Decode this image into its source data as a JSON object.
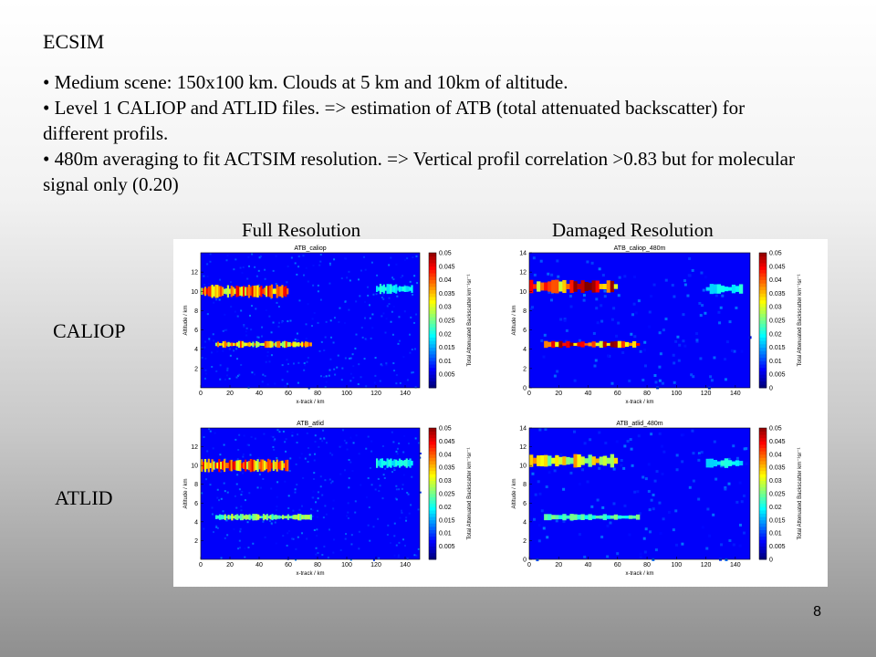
{
  "slide": {
    "title": "ECSIM",
    "bullets": [
      "• Medium scene: 150x100 km. Clouds at 5 km and 10km of altitude.",
      "• Level 1 CALIOP and ATLID files. => estimation of ATB (total attenuated backscatter) for different profils.",
      "• 480m averaging to fit ACTSIM resolution. => Vertical profil correlation >0.83 but for molecular signal only (0.20)"
    ],
    "column_headers": [
      "Full Resolution",
      "Damaged Resolution"
    ],
    "row_headers": [
      "CALIOP",
      "ATLID"
    ],
    "page_number": "8"
  },
  "chart_data": [
    {
      "type": "heatmap",
      "title": "ATB_caliop",
      "xlabel": "x-track / km",
      "ylabel": "Altitude / km",
      "colorbar_label": "Total Attenuated Backscatter km⁻¹sr⁻¹",
      "xlim": [
        0,
        150
      ],
      "ylim": [
        0,
        14
      ],
      "clim": [
        0,
        0.05
      ],
      "xticks": [
        0,
        20,
        40,
        60,
        80,
        100,
        120,
        140
      ],
      "yticks": [
        2,
        4,
        6,
        8,
        10,
        12
      ],
      "cticks": [
        0.005,
        0.01,
        0.015,
        0.02,
        0.025,
        0.03,
        0.035,
        0.04,
        0.045,
        0.05
      ],
      "features": [
        {
          "x": [
            0,
            60
          ],
          "y": [
            9,
            11
          ],
          "value": 0.04
        },
        {
          "x": [
            10,
            75
          ],
          "y": [
            4,
            5
          ],
          "value": 0.035
        },
        {
          "x": [
            120,
            145
          ],
          "y": [
            9.5,
            11
          ],
          "value": 0.01
        }
      ]
    },
    {
      "type": "heatmap",
      "title": "ATB_caliop_480m",
      "xlabel": "x-track / km",
      "ylabel": "Altitude / km",
      "colorbar_label": "Total Attenuated Backscatter km⁻¹sr⁻¹",
      "xlim": [
        0,
        150
      ],
      "ylim": [
        0,
        14
      ],
      "clim": [
        0,
        0.05
      ],
      "xticks": [
        0,
        20,
        40,
        60,
        80,
        100,
        120,
        140
      ],
      "yticks": [
        0,
        2,
        4,
        6,
        8,
        10,
        12,
        14
      ],
      "cticks": [
        0,
        0.005,
        0.01,
        0.015,
        0.02,
        0.025,
        0.03,
        0.035,
        0.04,
        0.045,
        0.05
      ],
      "features": [
        {
          "x": [
            0,
            60
          ],
          "y": [
            9.5,
            11.5
          ],
          "value": 0.045
        },
        {
          "x": [
            10,
            75
          ],
          "y": [
            4,
            5
          ],
          "value": 0.045
        },
        {
          "x": [
            120,
            145
          ],
          "y": [
            9.5,
            11
          ],
          "value": 0.01
        }
      ]
    },
    {
      "type": "heatmap",
      "title": "ATB_atlid",
      "xlabel": "x-track / km",
      "ylabel": "Altitude / km",
      "colorbar_label": "Total Attenuated Backscatter km⁻¹sr⁻¹",
      "xlim": [
        0,
        150
      ],
      "ylim": [
        0,
        14
      ],
      "clim": [
        0,
        0.05
      ],
      "xticks": [
        0,
        20,
        40,
        60,
        80,
        100,
        120,
        140
      ],
      "yticks": [
        2,
        4,
        6,
        8,
        10,
        12
      ],
      "cticks": [
        0.005,
        0.01,
        0.015,
        0.02,
        0.025,
        0.03,
        0.035,
        0.04,
        0.045,
        0.05
      ],
      "features": [
        {
          "x": [
            0,
            60
          ],
          "y": [
            9,
            11
          ],
          "value": 0.04
        },
        {
          "x": [
            10,
            75
          ],
          "y": [
            4,
            5
          ],
          "value": 0.02
        },
        {
          "x": [
            120,
            145
          ],
          "y": [
            9.5,
            11
          ],
          "value": 0.01
        }
      ]
    },
    {
      "type": "heatmap",
      "title": "ATB_atlid_480m",
      "xlabel": "x-track / km",
      "ylabel": "Altitude / km",
      "colorbar_label": "Total Attenuated Backscatter km⁻¹sr⁻¹",
      "xlim": [
        0,
        150
      ],
      "ylim": [
        0,
        14
      ],
      "clim": [
        0,
        0.05
      ],
      "xticks": [
        0,
        20,
        40,
        60,
        80,
        100,
        120,
        140
      ],
      "yticks": [
        0,
        2,
        4,
        6,
        8,
        10,
        12,
        14
      ],
      "cticks": [
        0,
        0.005,
        0.01,
        0.015,
        0.02,
        0.025,
        0.03,
        0.035,
        0.04,
        0.045,
        0.05
      ],
      "features": [
        {
          "x": [
            0,
            60
          ],
          "y": [
            9.5,
            11.5
          ],
          "value": 0.03
        },
        {
          "x": [
            10,
            75
          ],
          "y": [
            4,
            5
          ],
          "value": 0.015
        },
        {
          "x": [
            120,
            145
          ],
          "y": [
            9.5,
            11
          ],
          "value": 0.01
        }
      ]
    }
  ]
}
